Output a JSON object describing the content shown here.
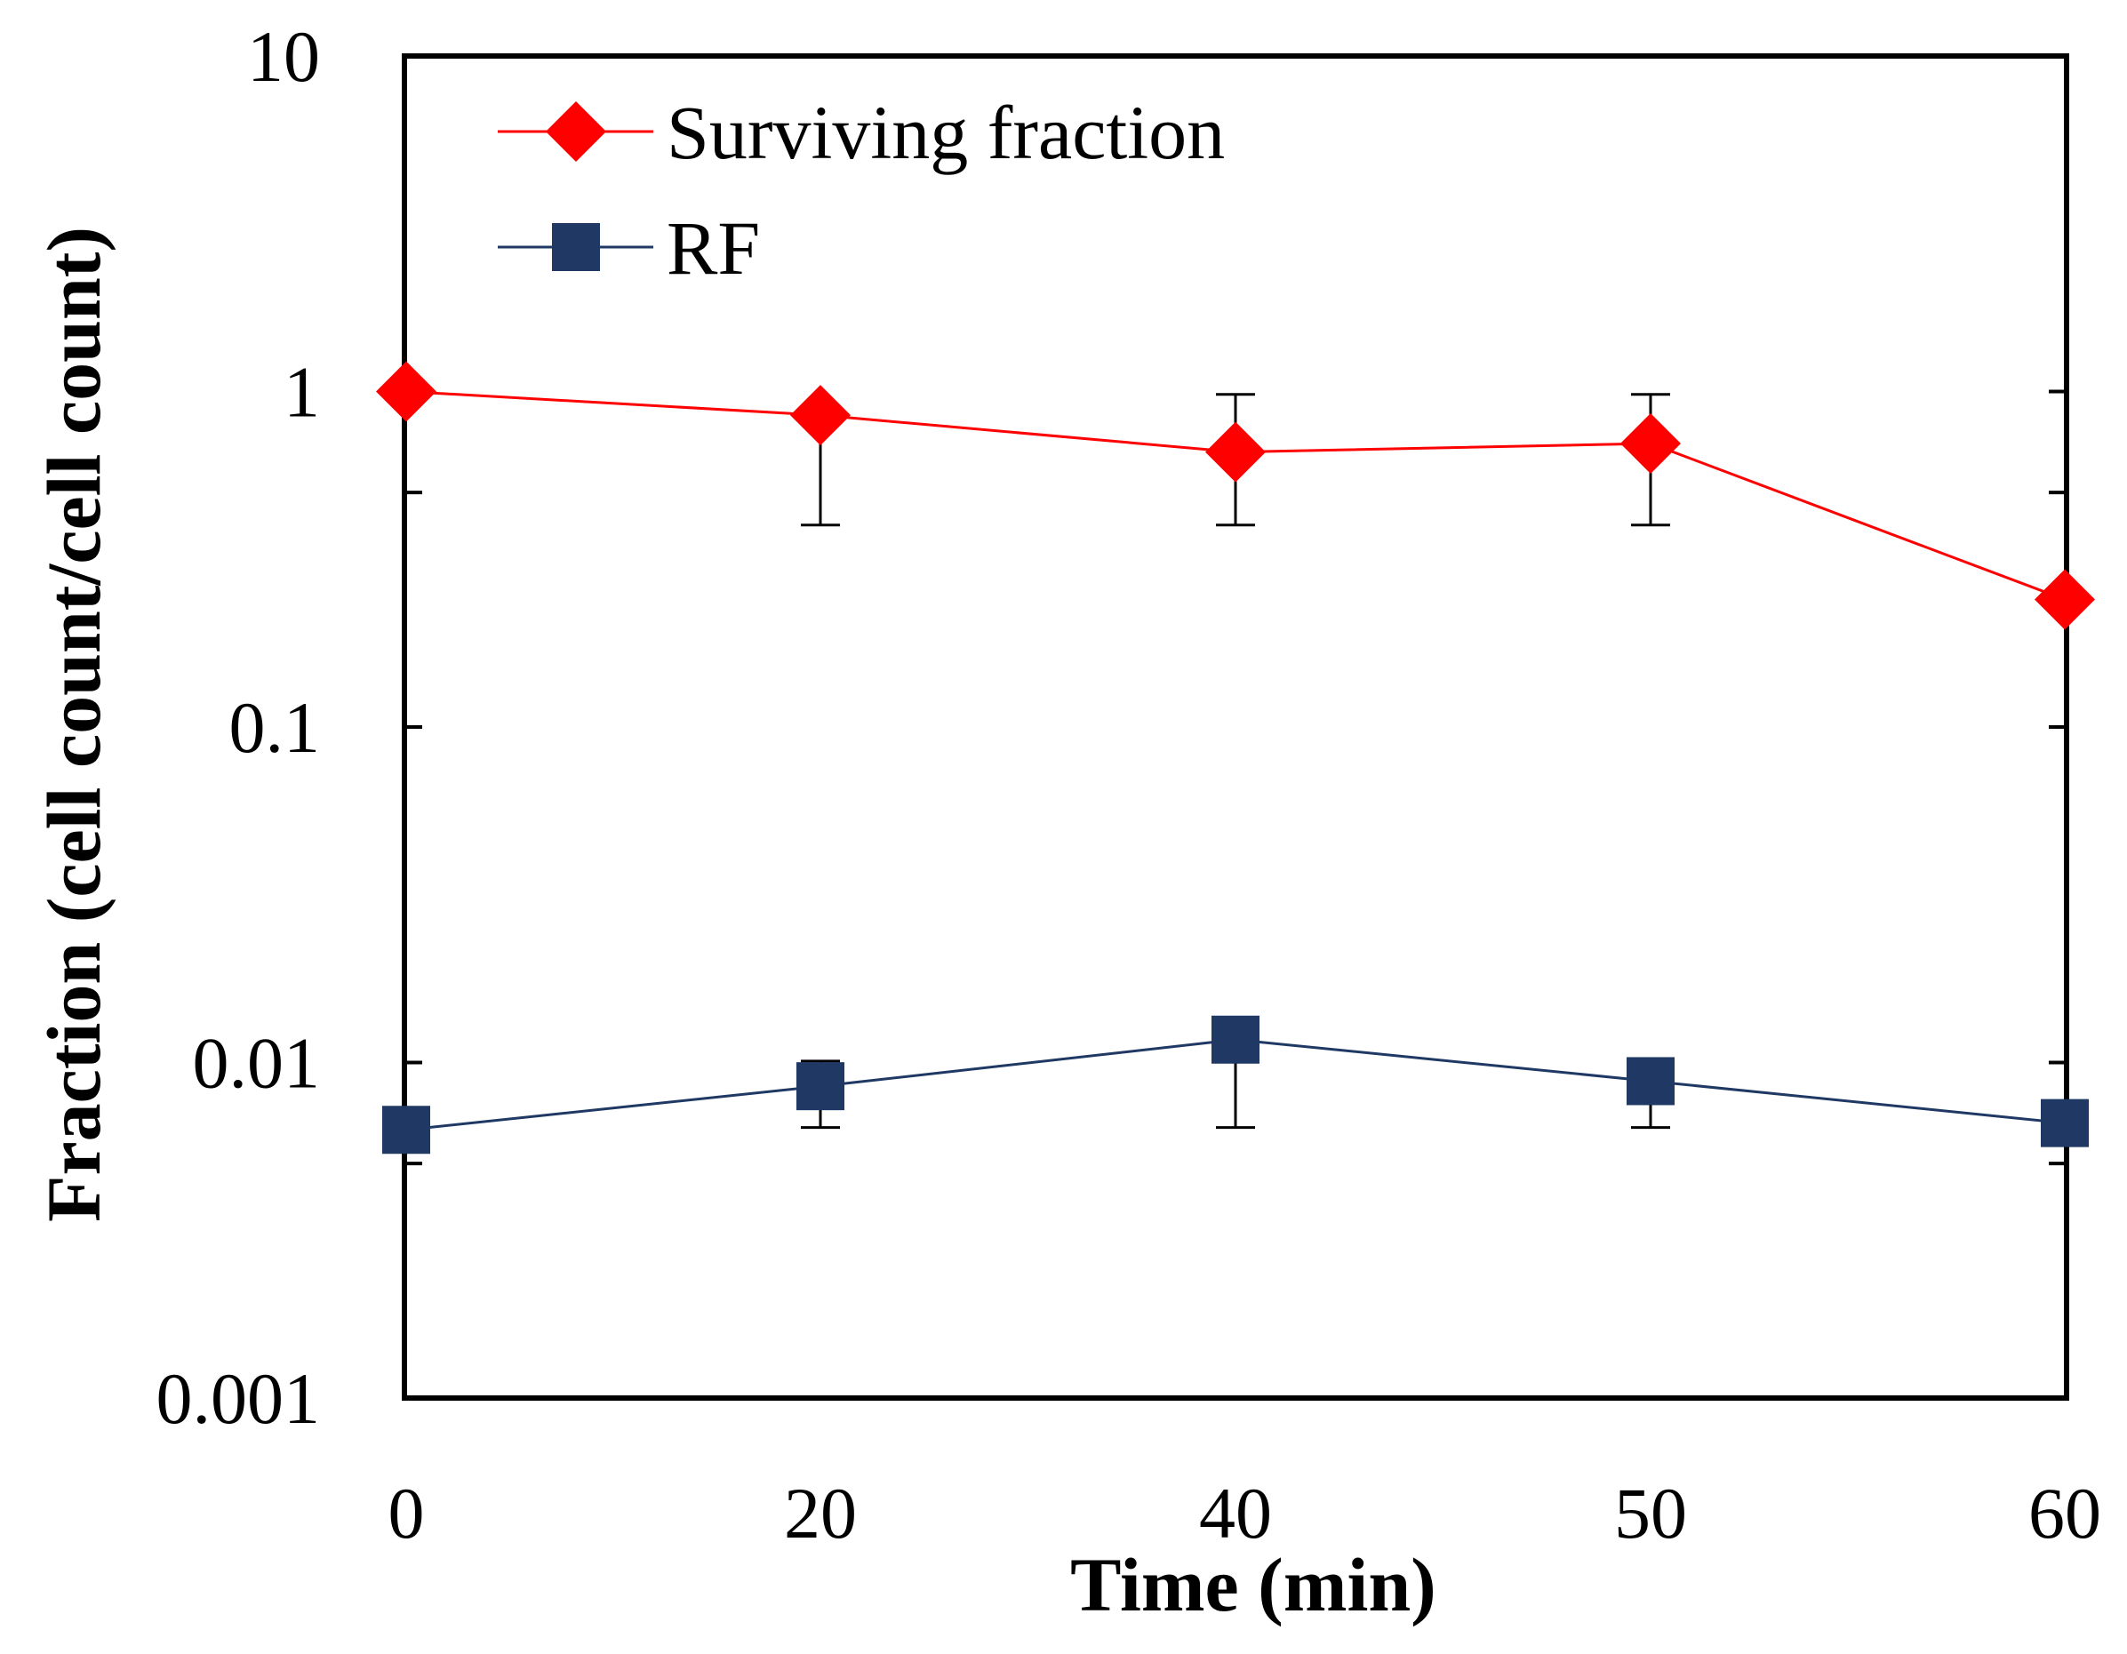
{
  "chart_data": {
    "type": "line",
    "xlabel": "Time (min)",
    "ylabel": "Fraction (cell count/cell count)",
    "y_scale": "log",
    "ylim": [
      0.001,
      10
    ],
    "y_ticks": [
      10,
      1,
      0.1,
      0.01,
      0.001
    ],
    "y_tick_labels": [
      "10",
      "1",
      "0.1",
      "0.01",
      "0.001"
    ],
    "x_ticks": [
      0,
      20,
      40,
      50,
      60
    ],
    "x_tick_labels": [
      "0",
      "20",
      "40",
      "50",
      "60"
    ],
    "x_axis": "categorical, evenly spaced",
    "grid": false,
    "legend_position": "top-left",
    "series": [
      {
        "name": "Surviving fraction",
        "color": "#ff0000",
        "marker": "diamond",
        "x": [
          0,
          20,
          40,
          50,
          60
        ],
        "y": [
          1.0,
          0.85,
          0.66,
          0.7,
          0.24
        ],
        "error_low": [
          null,
          0.4,
          0.4,
          0.4,
          null
        ],
        "error_high": [
          null,
          null,
          0.98,
          0.98,
          null
        ]
      },
      {
        "name": "RF",
        "color": "#1f3864",
        "marker": "square",
        "x": [
          0,
          20,
          40,
          50,
          60
        ],
        "y": [
          0.0063,
          0.0085,
          0.0117,
          0.0088,
          0.0066
        ],
        "error_low": [
          null,
          0.0064,
          0.0064,
          0.0064,
          null
        ],
        "error_high": [
          null,
          0.0101,
          null,
          null,
          null
        ]
      }
    ]
  }
}
